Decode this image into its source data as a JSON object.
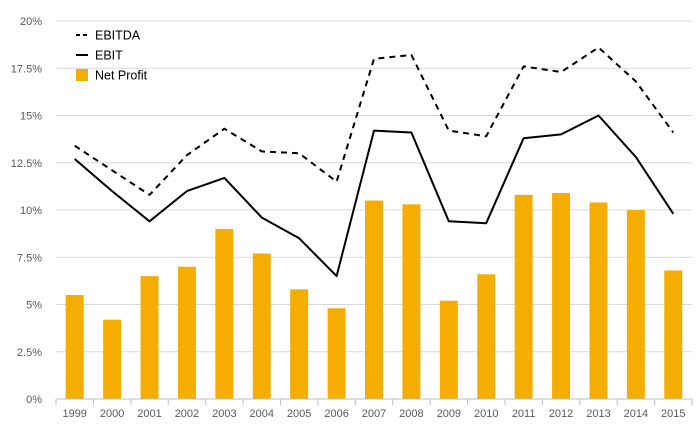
{
  "chart_data": {
    "type": "bar",
    "title": "",
    "xlabel": "",
    "ylabel": "",
    "ylim": [
      0,
      20
    ],
    "grid": true,
    "categories": [
      "1999",
      "2000",
      "2001",
      "2002",
      "2003",
      "2004",
      "2005",
      "2006",
      "2007",
      "2008",
      "2009",
      "2010",
      "2011",
      "2012",
      "2013",
      "2014",
      "2015"
    ],
    "y_ticks": [
      0,
      2.5,
      5,
      7.5,
      10,
      12.5,
      15,
      17.5,
      20
    ],
    "y_tick_labels": [
      "0%",
      "2.5%",
      "5%",
      "7.5%",
      "10%",
      "12.5%",
      "15%",
      "17.5%",
      "20%"
    ],
    "legend_position": "top-left",
    "series": [
      {
        "name": "EBITDA",
        "type": "line",
        "style": "dashed",
        "color": "#000000",
        "values": [
          13.4,
          12.1,
          10.8,
          12.9,
          14.3,
          13.1,
          13.0,
          11.5,
          18.0,
          18.2,
          14.2,
          13.9,
          17.6,
          17.3,
          18.6,
          16.8,
          14.1
        ]
      },
      {
        "name": "EBIT",
        "type": "line",
        "style": "solid",
        "color": "#000000",
        "values": [
          12.7,
          11.0,
          9.4,
          11.0,
          11.7,
          9.6,
          8.5,
          6.5,
          14.2,
          14.1,
          9.4,
          9.3,
          13.8,
          14.0,
          15.0,
          12.8,
          9.8
        ]
      },
      {
        "name": "Net Profit",
        "type": "bar",
        "color": "#F5AD00",
        "values": [
          5.5,
          4.2,
          6.5,
          7.0,
          9.0,
          7.7,
          5.8,
          4.8,
          10.5,
          10.3,
          5.2,
          6.6,
          10.8,
          10.9,
          10.4,
          10.0,
          6.8
        ]
      }
    ]
  },
  "colors": {
    "grid": "#d9d9d9",
    "axis": "#bfbfbf",
    "tick_text": "#595959"
  }
}
